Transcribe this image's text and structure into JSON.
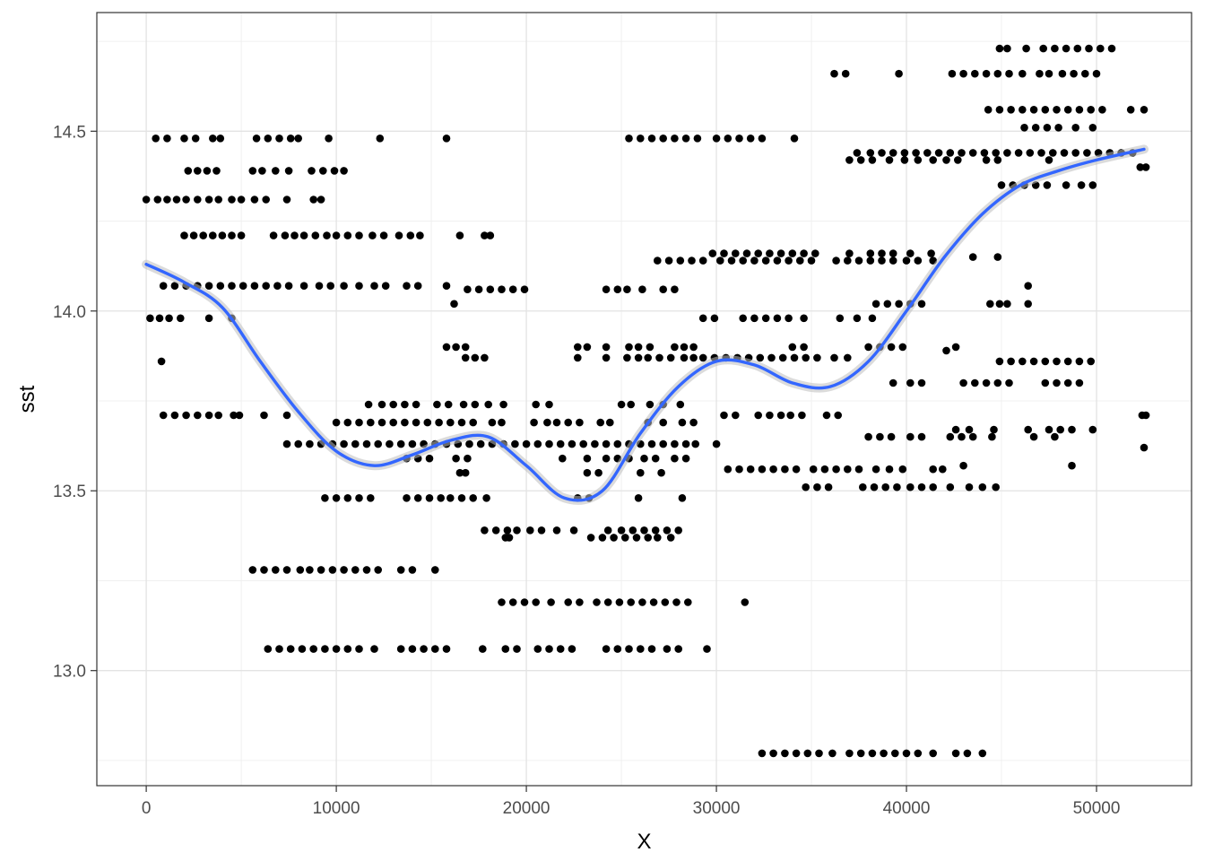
{
  "chart_data": {
    "type": "scatter",
    "xlabel": "X",
    "ylabel": "sst",
    "xlim": [
      -2600,
      55000
    ],
    "ylim": [
      12.68,
      14.83
    ],
    "x_ticks": [
      0,
      10000,
      20000,
      30000,
      40000,
      50000
    ],
    "x_tick_labels": [
      "0",
      "10000",
      "20000",
      "30000",
      "40000",
      "50000"
    ],
    "y_ticks": [
      13.0,
      13.5,
      14.0,
      14.5
    ],
    "y_tick_labels": [
      "13.0",
      "13.5",
      "14.0",
      "14.5"
    ],
    "grid": true,
    "point_color": "#000000",
    "smooth_color": "#3366ff",
    "band_color": "#bdbdbd",
    "point_segments": [
      {
        "y": 14.48,
        "x": [
          500,
          1100,
          2000,
          2600,
          3500,
          3900,
          5800,
          6400,
          7000,
          7600,
          8000,
          9600,
          12300,
          15800
        ]
      },
      {
        "y": 14.31,
        "x": [
          0,
          600,
          1100,
          1600,
          2100,
          2700,
          3300,
          3800,
          4500,
          5000,
          5700,
          6300,
          7400,
          8800,
          9200
        ]
      },
      {
        "y": 14.39,
        "x": [
          2200,
          2700,
          3200,
          3700,
          5600,
          6100,
          6800,
          7500,
          8700,
          9300,
          9900,
          10400
        ]
      },
      {
        "y": 14.21,
        "x": [
          2000,
          2500,
          3000,
          3500,
          4000,
          4500,
          5000,
          6700,
          7300,
          7800,
          8300,
          8900,
          9500,
          10000,
          10600,
          11200,
          11900,
          12500,
          13300,
          13900,
          14400,
          16500,
          17800,
          18100
        ]
      },
      {
        "y": 14.07,
        "x": [
          900,
          1500,
          2100,
          2700,
          3300,
          3900,
          4500,
          5100,
          5700,
          6300,
          6900,
          7500,
          8300,
          9100,
          9700,
          10400,
          11200,
          12000,
          12600,
          13700,
          14300,
          15800
        ]
      },
      {
        "y": 13.98,
        "x": [
          200,
          700,
          1200,
          1800,
          3300,
          4500
        ]
      },
      {
        "y": 14.02,
        "x": [
          16200
        ]
      },
      {
        "y": 13.86,
        "x": [
          800
        ]
      },
      {
        "y": 13.71,
        "x": [
          900,
          1500,
          2100,
          2700,
          3300,
          3800,
          4600,
          4900,
          6200,
          7400
        ]
      },
      {
        "y": 13.63,
        "x": [
          7400,
          8000,
          8600,
          9200,
          9800,
          10400,
          11000,
          11600,
          12200,
          12800,
          13400,
          14000,
          14600,
          15200,
          15800,
          16400,
          17000,
          17600,
          18200,
          18800,
          19400,
          20000,
          20600,
          21200,
          21800,
          22400,
          23000,
          23600,
          24200,
          24800,
          25400,
          26000,
          26600,
          27200,
          27800,
          28400,
          28900,
          30000
        ]
      },
      {
        "y": 13.69,
        "x": [
          10000,
          10600,
          11200,
          11800,
          12400,
          13000,
          13600,
          14200,
          14800,
          15400,
          16000,
          16600,
          17200,
          18200,
          18700,
          20400,
          21100,
          21600,
          22200,
          22800,
          23900,
          24400,
          26400,
          27200,
          28200,
          28800
        ]
      },
      {
        "y": 13.74,
        "x": [
          11700,
          12400,
          13000,
          13600,
          14200,
          15300,
          15900,
          16700,
          17300,
          18000,
          18800,
          20500,
          21200,
          25000,
          25500,
          26500,
          27200,
          28100
        ]
      },
      {
        "y": 13.48,
        "x": [
          9400,
          10000,
          10600,
          11200,
          11800,
          13700,
          14300,
          14900,
          15500,
          16000,
          16600,
          17200,
          17900,
          22700,
          23300,
          25900,
          28200
        ]
      },
      {
        "y": 13.39,
        "x": [
          17800,
          18400,
          19000,
          19500,
          20200,
          20800,
          21600,
          22500,
          24300,
          25000,
          25600,
          26200,
          26800,
          27400,
          28000
        ]
      },
      {
        "y": 13.37,
        "x": [
          18900,
          19100,
          23400,
          24000,
          24600,
          25200,
          25800,
          26400,
          26900,
          27600
        ]
      },
      {
        "y": 13.28,
        "x": [
          5600,
          6200,
          6800,
          7400,
          8100,
          8600,
          9200,
          9800,
          10400,
          11000,
          11600,
          12200,
          13400,
          14000,
          15200
        ]
      },
      {
        "y": 13.19,
        "x": [
          18700,
          19300,
          19900,
          20500,
          21300,
          22200,
          22800,
          23700,
          24300,
          24900,
          25500,
          26100,
          26700,
          27300,
          27900,
          28500,
          31500
        ]
      },
      {
        "y": 13.06,
        "x": [
          6400,
          7000,
          7600,
          8200,
          8800,
          9400,
          10000,
          10600,
          11200,
          12000,
          13400,
          14000,
          14600,
          15200,
          15800,
          17700,
          18900,
          19500,
          20600,
          21200,
          21800,
          22400,
          24200,
          24800,
          25400,
          26000,
          26600,
          27400,
          28000,
          29500
        ]
      },
      {
        "y": 13.59,
        "x": [
          13700,
          14300,
          14900,
          16300,
          16900,
          21900,
          23200,
          24200,
          24800,
          25400,
          26200,
          26800,
          27800,
          28400
        ]
      },
      {
        "y": 13.55,
        "x": [
          16500,
          16800,
          23200,
          23800,
          26000,
          27100
        ]
      },
      {
        "y": 13.9,
        "x": [
          15800,
          16300,
          16800,
          22700,
          23200,
          24200,
          25400,
          25900,
          26500,
          27800,
          28300,
          28800
        ]
      },
      {
        "y": 13.87,
        "x": [
          16800,
          17300,
          17800,
          22700,
          24200,
          25300,
          25900,
          26400,
          27000,
          27600,
          28300,
          28800,
          29300,
          29900,
          30500,
          31100,
          31700,
          32300,
          32900,
          33500,
          34100,
          34700,
          35300,
          36200,
          36900
        ]
      },
      {
        "y": 14.06,
        "x": [
          16900,
          17500,
          18100,
          18700,
          19300,
          19900,
          24200,
          24800,
          25300,
          26100,
          27200,
          27800
        ]
      },
      {
        "y": 14.48,
        "x": [
          25400,
          26000,
          26600,
          27200,
          27800,
          28400,
          29000,
          30000,
          30600,
          31200,
          31800,
          32400,
          34100
        ]
      },
      {
        "y": 14.14,
        "x": [
          26900,
          27500,
          28100,
          28700,
          29300,
          30200,
          30800,
          31400,
          32000,
          32600,
          33200,
          33800,
          34400,
          35000,
          36300,
          36900,
          37500,
          38100,
          38700,
          39300,
          40000,
          40600,
          41400
        ]
      },
      {
        "y": 14.16,
        "x": [
          29800,
          30400,
          31000,
          31600,
          32200,
          32800,
          33400,
          34000,
          34600,
          35200,
          37000,
          38100,
          38700,
          39300,
          40200,
          41300
        ]
      },
      {
        "y": 13.98,
        "x": [
          29300,
          29900,
          31400,
          32000,
          32600,
          33200,
          33800,
          34600,
          36500,
          37400,
          38200
        ]
      },
      {
        "y": 13.71,
        "x": [
          30400,
          31000,
          32200,
          32800,
          33400,
          33900,
          34500,
          35800,
          36400,
          52400,
          52600
        ]
      },
      {
        "y": 13.56,
        "x": [
          30600,
          31200,
          31800,
          32400,
          33000,
          33600,
          34200,
          35100,
          35700,
          36300,
          36900,
          37500,
          38400,
          39100,
          39800,
          41400,
          41900
        ]
      },
      {
        "y": 13.51,
        "x": [
          34700,
          35300,
          35900,
          37700,
          38300,
          38900,
          39500,
          40200,
          40800,
          41400,
          42300,
          43300,
          44000,
          44700
        ]
      },
      {
        "y": 13.9,
        "x": [
          34000,
          34600,
          38000,
          38600,
          39200,
          39800,
          42600
        ]
      },
      {
        "y": 14.66,
        "x": [
          36200,
          36800,
          39600,
          42400,
          43000,
          43600,
          44200,
          44800,
          45400,
          46100,
          47000,
          47500,
          48200,
          48800,
          49400,
          50000
        ]
      },
      {
        "y": 14.73,
        "x": [
          44900,
          45300,
          46300,
          47200,
          47800,
          48400,
          49000,
          49600,
          50200,
          50800
        ]
      },
      {
        "y": 14.44,
        "x": [
          37400,
          38100,
          38700,
          39300,
          39900,
          40500,
          41100,
          41700,
          42300,
          42900,
          43500,
          44100,
          44700,
          45300,
          45900,
          46500,
          47100,
          47700,
          48300,
          48900,
          49500,
          50100,
          50700,
          51300,
          51900
        ]
      },
      {
        "y": 14.42,
        "x": [
          37000,
          37600,
          38200,
          39100,
          39900,
          40600,
          41400,
          42100,
          42700,
          44200,
          44800,
          47500
        ]
      },
      {
        "y": 14.56,
        "x": [
          44300,
          44900,
          45500,
          46100,
          46700,
          47300,
          47900,
          48500,
          49100,
          49700,
          50300,
          51800,
          52500
        ]
      },
      {
        "y": 14.51,
        "x": [
          46200,
          46800,
          47400,
          48000,
          48900,
          49800
        ]
      },
      {
        "y": 14.35,
        "x": [
          45000,
          45600,
          46200,
          46800,
          47400,
          48400,
          49200,
          49800
        ]
      },
      {
        "y": 14.4,
        "x": [
          52300,
          52600
        ]
      },
      {
        "y": 14.02,
        "x": [
          38400,
          39000,
          39600,
          40200,
          40800,
          44400,
          44900,
          45300,
          46400
        ]
      },
      {
        "y": 14.07,
        "x": [
          46400
        ]
      },
      {
        "y": 14.15,
        "x": [
          43500,
          44800
        ]
      },
      {
        "y": 13.89,
        "x": [
          42100
        ]
      },
      {
        "y": 13.86,
        "x": [
          44900,
          45500,
          46100,
          46700,
          47300,
          47900,
          48500,
          49100,
          49700
        ]
      },
      {
        "y": 13.8,
        "x": [
          39300,
          40200,
          40800,
          43000,
          43600,
          44200,
          44800,
          45400,
          47300,
          47900,
          48500,
          49100
        ]
      },
      {
        "y": 13.67,
        "x": [
          42600,
          43300,
          44600,
          46400,
          47500,
          48100,
          48700,
          49800
        ]
      },
      {
        "y": 13.65,
        "x": [
          38000,
          38600,
          39200,
          40200,
          40800,
          42300,
          42900,
          43500,
          44500,
          46700,
          47800
        ]
      },
      {
        "y": 13.57,
        "x": [
          43000,
          48700
        ]
      },
      {
        "y": 13.62,
        "x": [
          52500
        ]
      },
      {
        "y": 12.77,
        "x": [
          32400,
          33000,
          33600,
          34200,
          34800,
          35400,
          36100,
          37000,
          37600,
          38200,
          38800,
          39400,
          40000,
          40600,
          41400,
          42600,
          43200,
          44000
        ]
      }
    ],
    "smooth_line": {
      "x": [
        0,
        2000,
        4000,
        6000,
        8000,
        10000,
        12000,
        14000,
        16000,
        18000,
        20000,
        22000,
        24000,
        26000,
        28000,
        30000,
        32000,
        34000,
        36000,
        38000,
        40000,
        42000,
        44000,
        46000,
        48000,
        50000,
        52500
      ],
      "y": [
        14.13,
        14.08,
        14.01,
        13.86,
        13.72,
        13.61,
        13.57,
        13.6,
        13.64,
        13.65,
        13.57,
        13.48,
        13.5,
        13.66,
        13.79,
        13.86,
        13.85,
        13.8,
        13.79,
        13.86,
        14.0,
        14.15,
        14.27,
        14.35,
        14.39,
        14.42,
        14.45
      ]
    }
  }
}
